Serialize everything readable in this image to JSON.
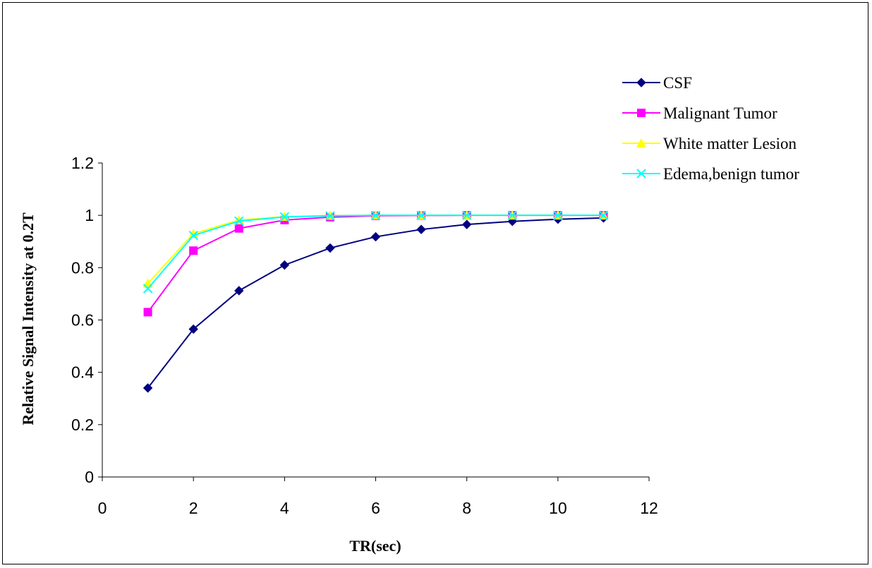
{
  "chart_data": {
    "type": "line",
    "title": "",
    "xlabel": "TR(sec)",
    "ylabel": "Relative Signal Intensity at 0.2T",
    "xlim": [
      0,
      12
    ],
    "ylim": [
      0,
      1.2
    ],
    "xticks": [
      0,
      2,
      4,
      6,
      8,
      10,
      12
    ],
    "yticks": [
      0,
      0.2,
      0.4,
      0.6,
      0.8,
      1,
      1.2
    ],
    "x": [
      1,
      2,
      3,
      4,
      5,
      6,
      7,
      8,
      9,
      10,
      11
    ],
    "grid": false,
    "legend_position": "right",
    "series": [
      {
        "name": "CSF",
        "color": "#000080",
        "marker": "diamond",
        "values": [
          0.34,
          0.565,
          0.712,
          0.81,
          0.875,
          0.918,
          0.946,
          0.965,
          0.977,
          0.985,
          0.99
        ]
      },
      {
        "name": "Malignant Tumor",
        "color": "#FF00FF",
        "marker": "square",
        "values": [
          0.63,
          0.865,
          0.95,
          0.982,
          0.993,
          0.998,
          0.999,
          1.0,
          1.0,
          1.0,
          1.0
        ]
      },
      {
        "name": "White matter Lesion",
        "color": "#FFFF00",
        "marker": "triangle",
        "values": [
          0.74,
          0.93,
          0.982,
          0.995,
          0.999,
          1.0,
          1.0,
          1.0,
          1.0,
          1.0,
          1.0
        ]
      },
      {
        "name": "Edema,benign tumor",
        "color": "#00FFFF",
        "marker": "x",
        "values": [
          0.72,
          0.923,
          0.978,
          0.994,
          0.998,
          1.0,
          1.0,
          1.0,
          1.0,
          1.0,
          1.0
        ]
      }
    ]
  }
}
